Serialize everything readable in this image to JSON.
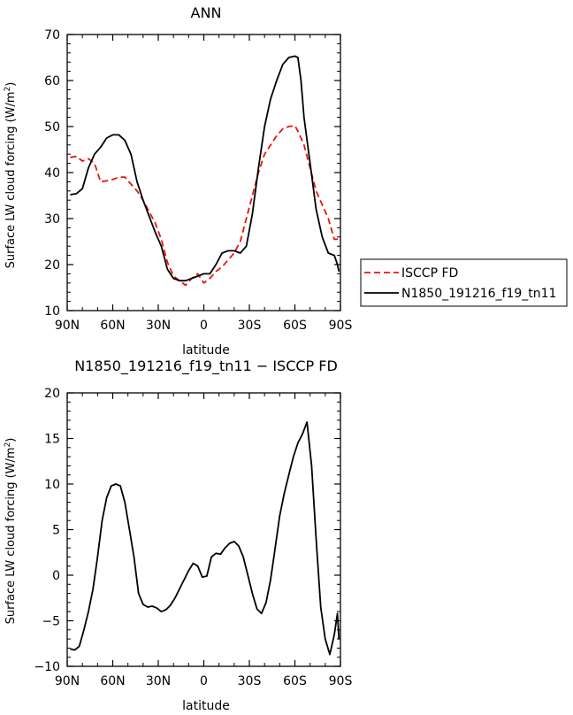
{
  "chart_data": [
    {
      "type": "line",
      "title": "ANN",
      "xlabel": "latitude",
      "ylabel": "Surface LW cloud forcing (W/m",
      "ylabel_sup": "2",
      "ylabel_end": ")",
      "xlim": [
        -90,
        90
      ],
      "ylim": [
        10,
        70
      ],
      "x_ticks": [
        -90,
        -60,
        -30,
        0,
        30,
        60,
        90
      ],
      "x_tick_labels": [
        "90N",
        "60N",
        "30N",
        "0",
        "30S",
        "60S",
        "90S"
      ],
      "y_ticks": [
        10,
        20,
        30,
        40,
        50,
        60,
        70
      ],
      "y_tick_labels": [
        "10",
        "20",
        "30",
        "40",
        "50",
        "60",
        "70"
      ],
      "legend_position": "right",
      "series": [
        {
          "name": "ISCCP FD",
          "color": "#e8150c",
          "dash": "dashed",
          "x": [
            -88,
            -84,
            -80,
            -76,
            -72,
            -68,
            -64,
            -60,
            -56,
            -52,
            -48,
            -44,
            -40,
            -36,
            -32,
            -28,
            -24,
            -20,
            -16,
            -12,
            -8,
            -4,
            0,
            4,
            8,
            12,
            16,
            20,
            24,
            28,
            32,
            36,
            40,
            44,
            48,
            52,
            56,
            60,
            62,
            66,
            70,
            74,
            78,
            82,
            86,
            89
          ],
          "y": [
            43.3,
            43.5,
            42.5,
            43,
            42,
            38,
            38.2,
            38.5,
            39,
            39,
            37.5,
            36,
            34,
            31.5,
            29,
            25.5,
            20.5,
            17.5,
            16.5,
            15.5,
            17,
            18,
            16,
            17,
            18.5,
            19.5,
            21,
            22.5,
            25,
            30,
            35,
            40,
            44,
            46,
            48,
            49.5,
            50,
            50.2,
            49,
            46,
            41,
            36,
            33,
            30,
            25.5,
            25.5
          ]
        },
        {
          "name": "N1850_191216_f19_tn11",
          "color": "#000000",
          "dash": "solid",
          "x": [
            -88,
            -84,
            -80,
            -76,
            -72,
            -68,
            -64,
            -60,
            -56,
            -52,
            -48,
            -44,
            -40,
            -36,
            -32,
            -28,
            -24,
            -20,
            -16,
            -12,
            -8,
            -4,
            0,
            4,
            8,
            12,
            16,
            20,
            24,
            28,
            32,
            36,
            40,
            44,
            48,
            52,
            56,
            60,
            62,
            64,
            66,
            70,
            74,
            78,
            82,
            86,
            88,
            89
          ],
          "y": [
            35.2,
            35.4,
            36.5,
            41,
            44,
            45.5,
            47.5,
            48.2,
            48.2,
            47,
            44,
            38,
            34,
            30.5,
            27,
            24,
            19,
            17,
            16.5,
            16.5,
            17,
            17.5,
            18,
            18,
            20,
            22.5,
            23,
            23,
            22.5,
            24,
            31,
            41,
            50,
            56,
            60,
            63.5,
            65,
            65.3,
            65,
            60,
            52,
            42,
            32,
            26,
            22.5,
            22,
            20,
            18.5
          ]
        }
      ]
    },
    {
      "type": "line",
      "title": "N1850_191216_f19_tn11 − ISCCP FD",
      "xlabel": "latitude",
      "ylabel": "Surface LW cloud forcing (W/m",
      "ylabel_sup": "2",
      "ylabel_end": ")",
      "xlim": [
        -90,
        90
      ],
      "ylim": [
        -10,
        20
      ],
      "x_ticks": [
        -90,
        -60,
        -30,
        0,
        30,
        60,
        90
      ],
      "x_tick_labels": [
        "90N",
        "60N",
        "30N",
        "0",
        "30S",
        "60S",
        "90S"
      ],
      "y_ticks": [
        -10,
        -5,
        0,
        5,
        10,
        15,
        20
      ],
      "y_tick_labels": [
        "−10",
        "−5",
        "0",
        "5",
        "10",
        "15",
        "20"
      ],
      "series": [
        {
          "color": "#000000",
          "dash": "solid",
          "x": [
            -88,
            -85,
            -82,
            -79,
            -76,
            -73,
            -70,
            -67,
            -64,
            -61,
            -58,
            -55,
            -52,
            -49,
            -46,
            -43,
            -40,
            -37,
            -34,
            -31,
            -28,
            -25,
            -22,
            -19,
            -16,
            -13,
            -10,
            -7,
            -4,
            -1,
            2,
            5,
            8,
            11,
            14,
            17,
            20,
            23,
            26,
            29,
            32,
            35,
            38,
            41,
            44,
            47,
            50,
            53,
            56,
            59,
            62,
            65,
            68,
            71,
            74,
            77,
            80,
            83,
            86,
            88,
            89
          ],
          "y": [
            -8.1,
            -8.2,
            -7.8,
            -6,
            -4,
            -1.5,
            2,
            6,
            8.5,
            9.8,
            10,
            9.8,
            8,
            5,
            2,
            -2,
            -3.2,
            -3.5,
            -3.4,
            -3.6,
            -4,
            -3.8,
            -3.3,
            -2.5,
            -1.5,
            -0.5,
            0.5,
            1.3,
            1.0,
            -0.2,
            -0.1,
            2,
            2.4,
            2.3,
            3,
            3.5,
            3.7,
            3.2,
            2,
            0,
            -2,
            -3.7,
            -4.2,
            -3,
            -0.5,
            3,
            6.5,
            9,
            11,
            13,
            14.5,
            15.5,
            16.8,
            12,
            4,
            -3.5,
            -7,
            -8.7,
            -6.5,
            -4.2,
            -7
          ]
        }
      ]
    }
  ]
}
